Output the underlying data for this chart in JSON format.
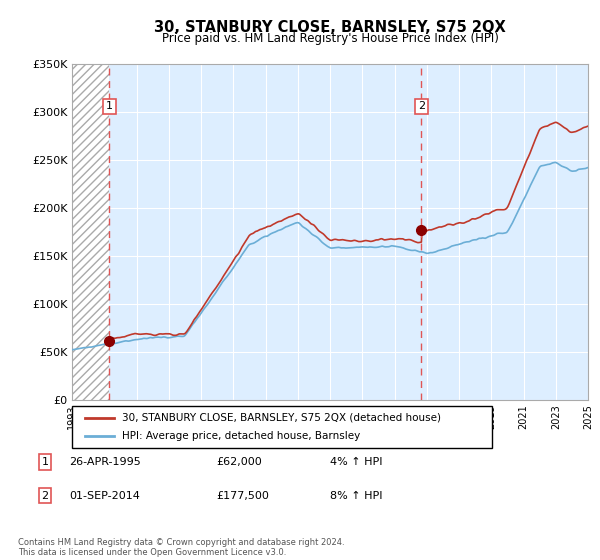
{
  "title": "30, STANBURY CLOSE, BARNSLEY, S75 2QX",
  "subtitle": "Price paid vs. HM Land Registry's House Price Index (HPI)",
  "legend_line1": "30, STANBURY CLOSE, BARNSLEY, S75 2QX (detached house)",
  "legend_line2": "HPI: Average price, detached house, Barnsley",
  "annotation1_label": "1",
  "annotation1_date": "26-APR-1995",
  "annotation1_price": "£62,000",
  "annotation1_hpi": "4% ↑ HPI",
  "annotation2_label": "2",
  "annotation2_date": "01-SEP-2014",
  "annotation2_price": "£177,500",
  "annotation2_hpi": "8% ↑ HPI",
  "footnote": "Contains HM Land Registry data © Crown copyright and database right 2024.\nThis data is licensed under the Open Government Licence v3.0.",
  "sale1_year": 1995.32,
  "sale1_price": 62000,
  "sale2_year": 2014.67,
  "sale2_price": 177500,
  "hpi_line_color": "#6baed6",
  "price_color": "#c0392b",
  "dashed_line_color": "#e05555",
  "plot_bg_color": "#ddeeff",
  "hatch_color": "#cccccc",
  "ylim_max": 350000,
  "ylim_min": 0,
  "xmin": 1993,
  "xmax": 2025
}
